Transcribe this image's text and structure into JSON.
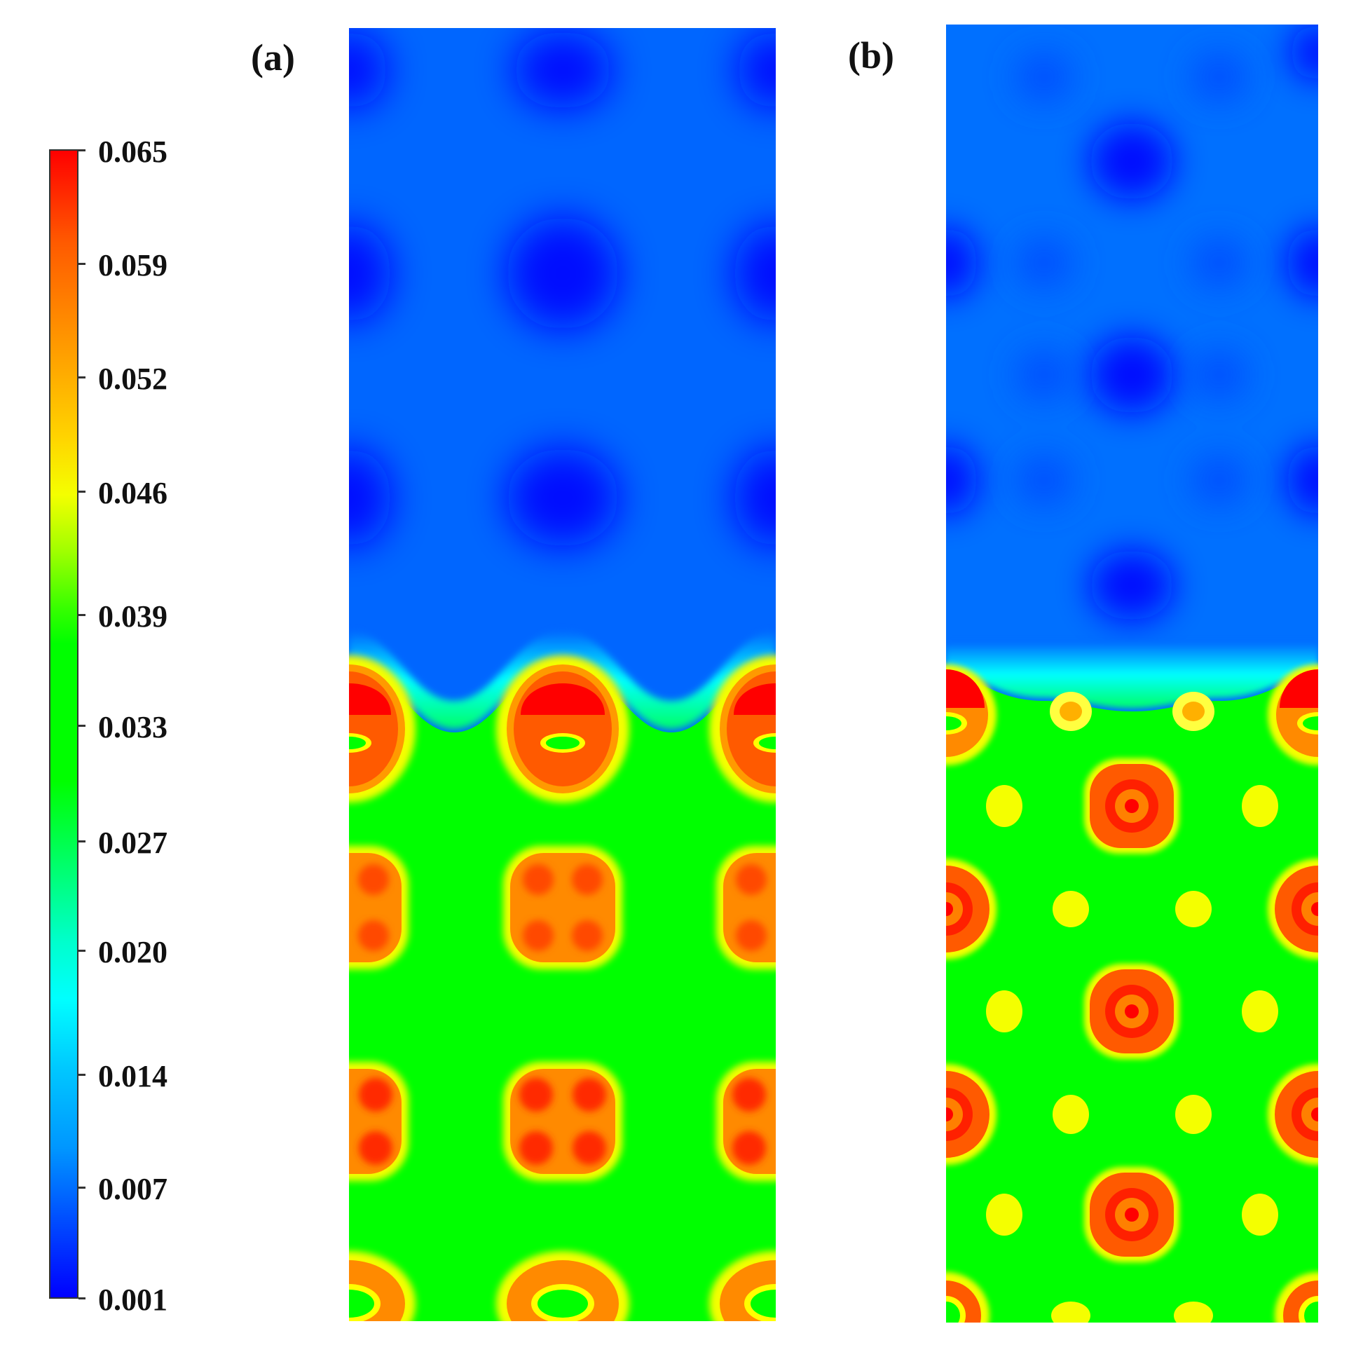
{
  "colorbar": {
    "ticks": [
      "0.065",
      "0.059",
      "0.052",
      "0.046",
      "0.039",
      "0.033",
      "0.027",
      "0.020",
      "0.014",
      "0.007",
      "0.001"
    ],
    "min": 0.001,
    "max": 0.065
  },
  "panels": [
    {
      "label": "(a)"
    },
    {
      "label": "(b)"
    }
  ],
  "colors": {
    "low": "#0000ff",
    "background_field": "#0066ff",
    "interface": "#00ffff",
    "mid": "#00ff00",
    "high_ring": "#ffff00",
    "high": "#ff0000"
  }
}
